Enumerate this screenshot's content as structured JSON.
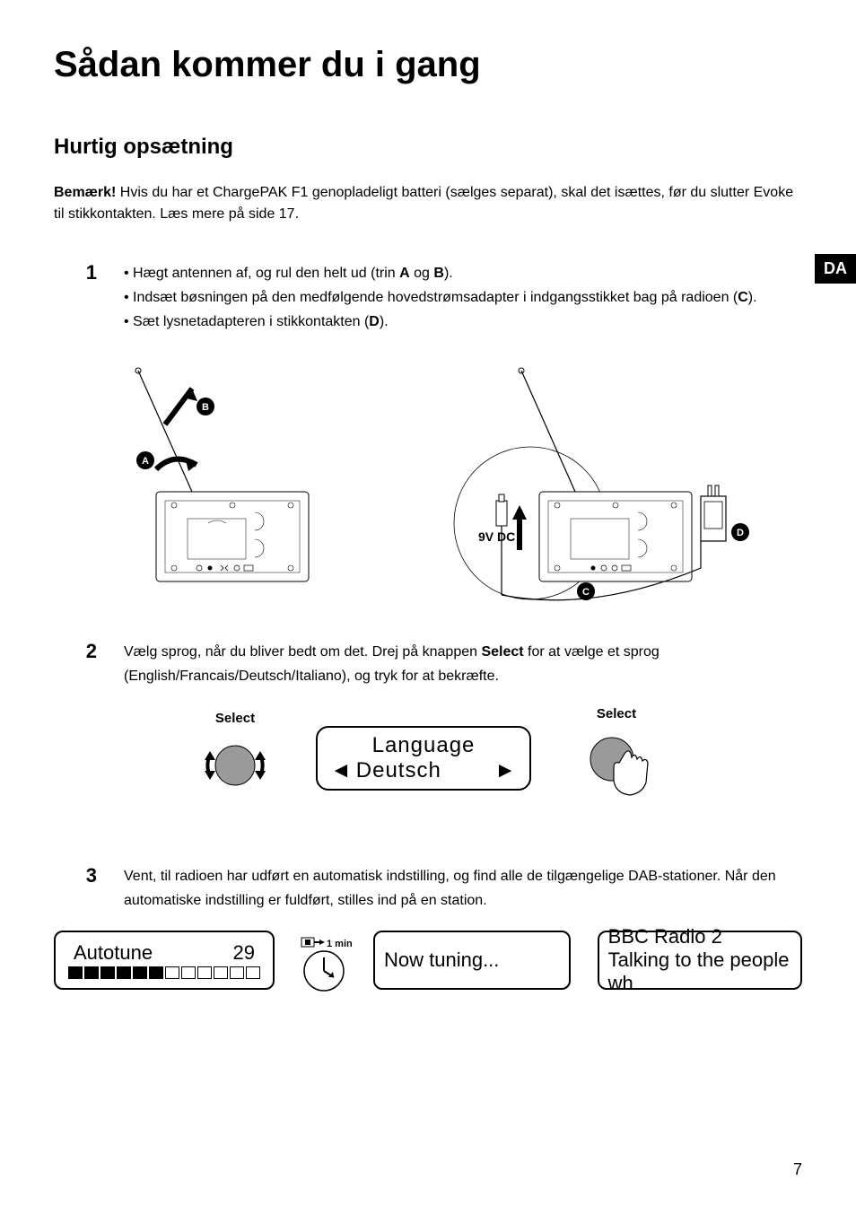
{
  "page": {
    "title": "Sådan kommer du i gang",
    "section": "Hurtig opsætning",
    "lang_tab": "DA",
    "page_number": "7"
  },
  "note": {
    "bold": "Bemærk!",
    "text": " Hvis du har et ChargePAK F1 genopladeligt batteri (sælges separat), skal det isættes, før du slutter Evoke til stikkontakten. Læs mere på side 17."
  },
  "step1": {
    "num": "1",
    "bullet1_pre": "Hægt antennen af, og rul den helt ud (trin ",
    "bullet1_a": "A",
    "bullet1_mid": " og ",
    "bullet1_b": "B",
    "bullet1_post": ").",
    "bullet2_pre": "Indsæt bøsningen på den medfølgende hovedstrømsadapter i indgangsstikket bag på radioen (",
    "bullet2_c": "C",
    "bullet2_post": ").",
    "bullet3_pre": "Sæt lysnetadapteren i stikkontakten (",
    "bullet3_d": "D",
    "bullet3_post": ").",
    "diagram": {
      "labels": {
        "a": "A",
        "b": "B",
        "c": "C",
        "d": "D",
        "dc": "9V DC"
      }
    }
  },
  "step2": {
    "num": "2",
    "text_pre": "Vælg sprog, når du bliver bedt om det. Drej på knappen ",
    "select_bold": "Select",
    "text_post": " for at vælge et sprog (English/Francais/Deutsch/Italiano), og tryk for at bekræfte.",
    "select_label": "Select",
    "lcd": {
      "line1": "Language",
      "line2": "Deutsch"
    }
  },
  "step3": {
    "num": "3",
    "text": "Vent, til radioen har udført en automatisk indstilling, og find alle de tilgængelige DAB-stationer. Når den automatiske indstilling er fuldført, stilles ind på en station.",
    "lcd_a": {
      "title": "Autotune",
      "count": "29",
      "filled_segments": 6,
      "total_segments": 12
    },
    "clock_label": "1 min",
    "lcd_b": {
      "text": "Now tuning..."
    },
    "lcd_c": {
      "line1": "BBC Radio 2",
      "line2": "Talking to the people wh"
    }
  },
  "colors": {
    "text": "#000000",
    "bg": "#ffffff",
    "tab_bg": "#000000",
    "tab_fg": "#ffffff",
    "knob_fill": "#9a9a9a"
  }
}
